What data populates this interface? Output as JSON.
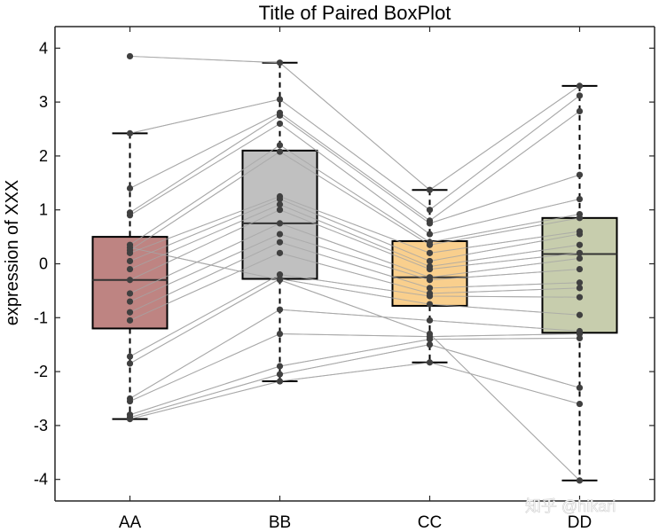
{
  "chart_data": {
    "type": "boxplot",
    "title": "Title of Paired BoxPlot",
    "xlabel": "",
    "ylabel": "expression of XXX",
    "ylim": [
      -4.4,
      4.4
    ],
    "yticks": [
      -4,
      -3,
      -2,
      -1,
      0,
      1,
      2,
      3,
      4
    ],
    "categories": [
      "AA",
      "BB",
      "CC",
      "DD"
    ],
    "colors": [
      "#b87a77",
      "#bbbbbb",
      "#f8cb83",
      "#c2c9a6"
    ],
    "boxes": [
      {
        "name": "AA",
        "q1": -1.2,
        "median": -0.3,
        "q3": 0.5,
        "whisker_low": -2.88,
        "whisker_high": 2.42
      },
      {
        "name": "BB",
        "q1": -0.28,
        "median": 0.75,
        "q3": 2.1,
        "whisker_low": -2.18,
        "whisker_high": 3.73
      },
      {
        "name": "CC",
        "q1": -0.78,
        "median": -0.25,
        "q3": 0.42,
        "whisker_low": -1.83,
        "whisker_high": 1.37
      },
      {
        "name": "DD",
        "q1": -1.28,
        "median": 0.18,
        "q3": 0.85,
        "whisker_low": -4.02,
        "whisker_high": 3.3
      }
    ],
    "pairs": [
      [
        3.85,
        3.73,
        1.37,
        3.3
      ],
      [
        2.42,
        3.05,
        1.0,
        3.12
      ],
      [
        1.4,
        2.8,
        0.8,
        2.83
      ],
      [
        0.95,
        2.75,
        0.75,
        1.65
      ],
      [
        0.9,
        2.6,
        0.55,
        1.2
      ],
      [
        0.35,
        2.2,
        0.4,
        0.92
      ],
      [
        0.25,
        2.08,
        0.35,
        0.85
      ],
      [
        0.2,
        1.25,
        0.2,
        0.6
      ],
      [
        0.05,
        1.2,
        0.05,
        0.55
      ],
      [
        -0.1,
        1.1,
        -0.05,
        0.35
      ],
      [
        -0.3,
        1.0,
        -0.1,
        0.2
      ],
      [
        -0.55,
        0.75,
        -0.25,
        0.1
      ],
      [
        -0.7,
        0.55,
        -0.3,
        -0.1
      ],
      [
        -0.9,
        0.4,
        -0.45,
        -0.35
      ],
      [
        -1.05,
        0.2,
        -0.55,
        -0.45
      ],
      [
        -1.72,
        -0.2,
        -0.6,
        -0.62
      ],
      [
        -1.85,
        -0.28,
        -0.75,
        -0.95
      ],
      [
        -2.5,
        -0.85,
        -1.05,
        -1.25
      ],
      [
        -2.55,
        -1.3,
        -1.35,
        -1.3
      ],
      [
        -2.8,
        -1.9,
        -1.4,
        -1.38
      ],
      [
        -2.85,
        -2.05,
        -1.5,
        -2.3
      ],
      [
        -2.88,
        -2.18,
        -1.83,
        -2.6
      ],
      [
        0.3,
        -0.3,
        -1.3,
        -4.02
      ]
    ]
  },
  "watermark": "知乎 @hikari"
}
